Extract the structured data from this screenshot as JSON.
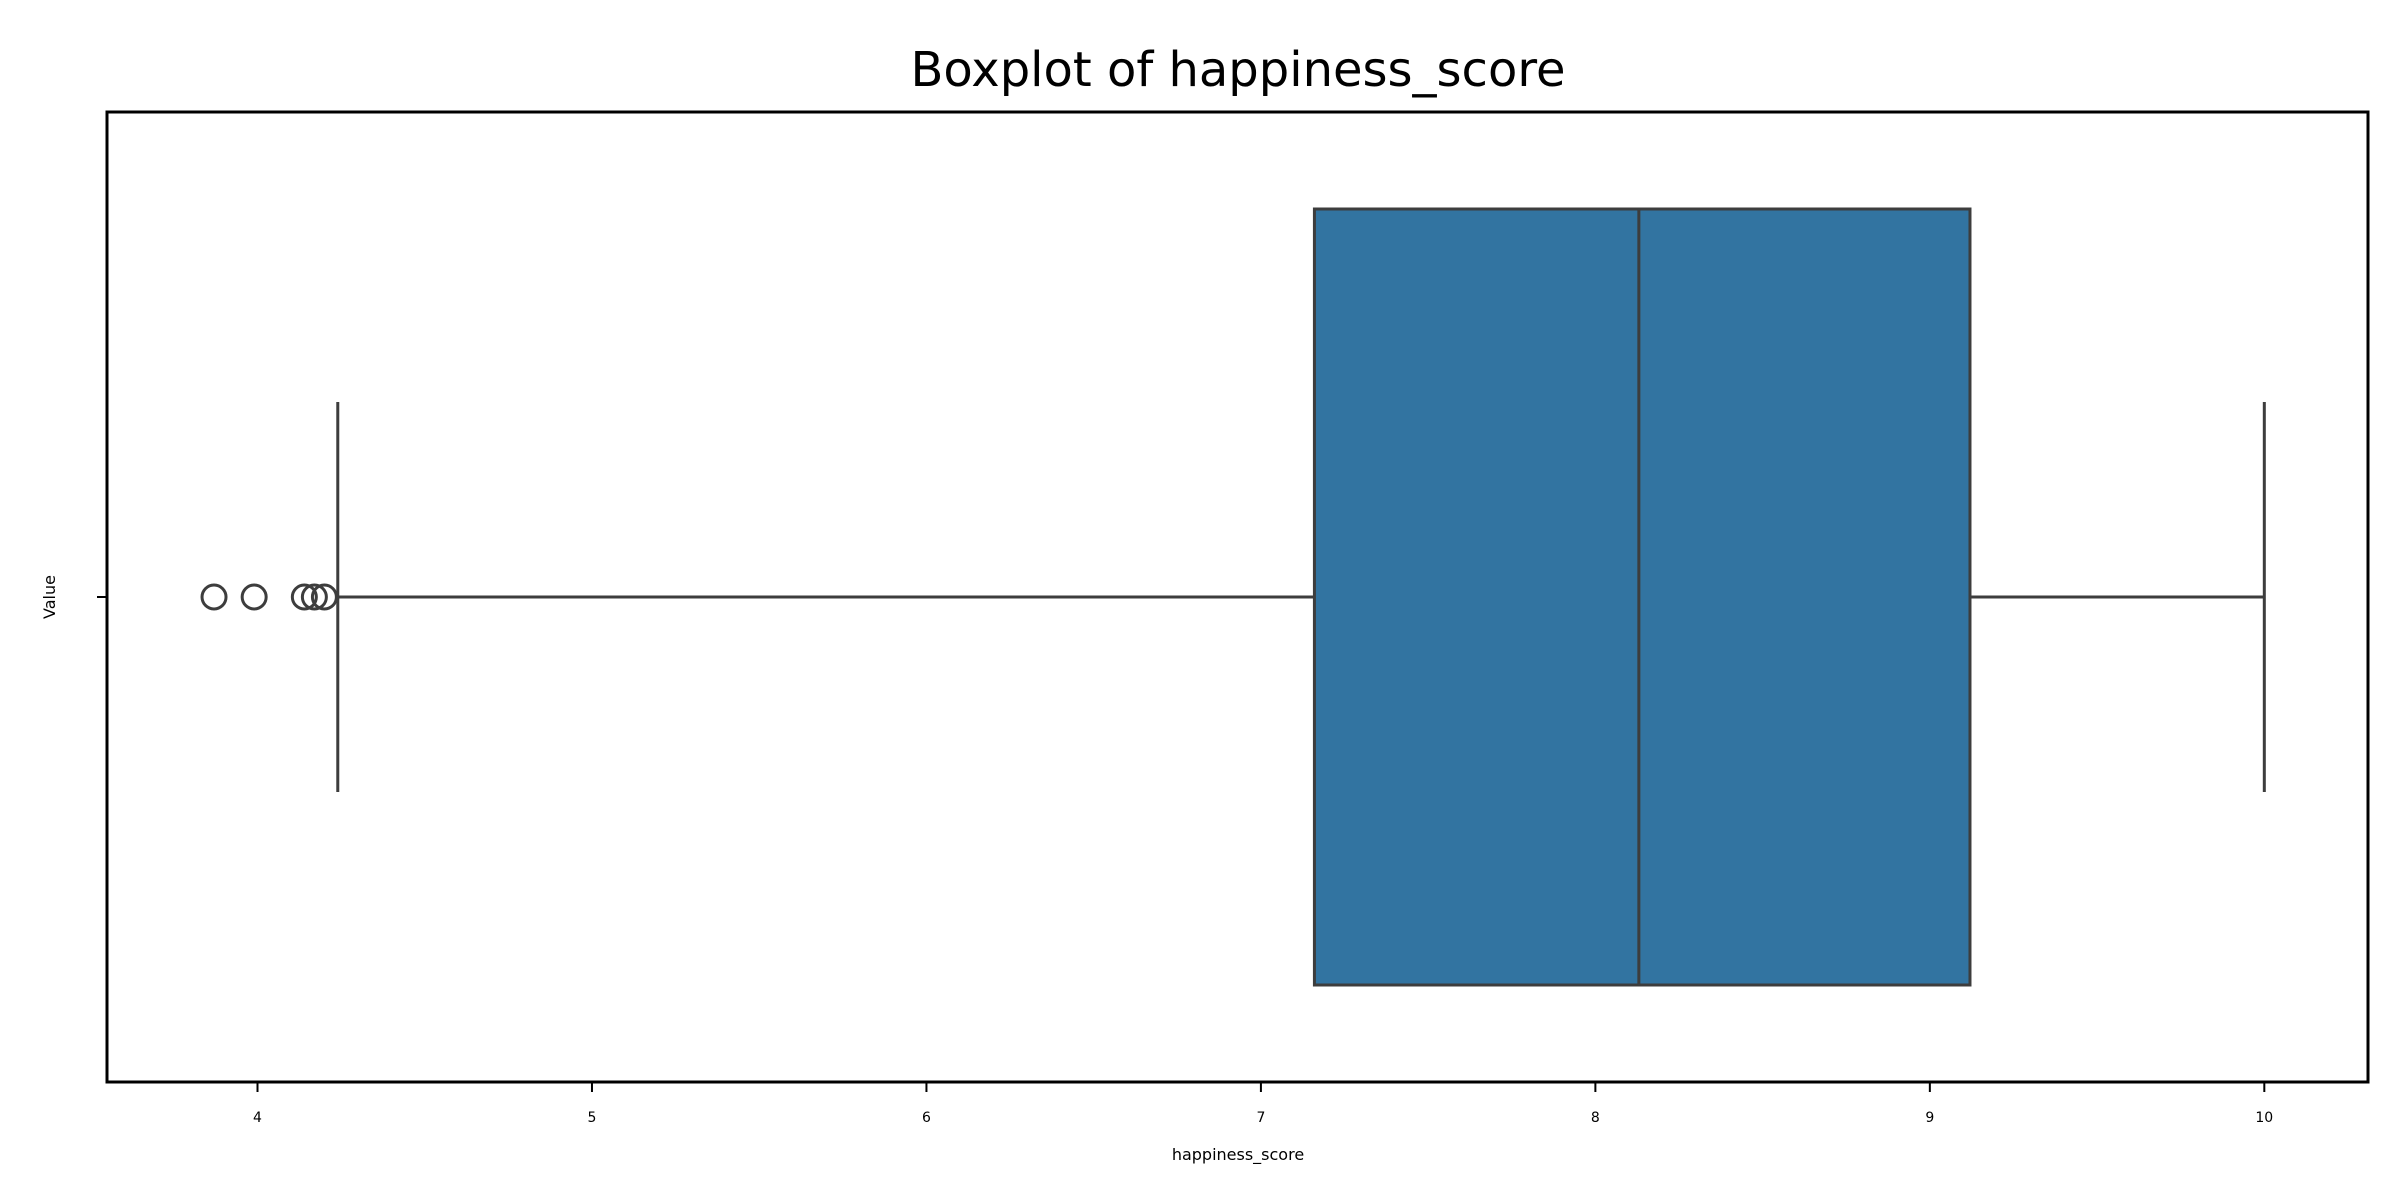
{
  "chart_data": {
    "type": "boxplot",
    "orientation": "horizontal",
    "title": "Boxplot of happiness_score",
    "xlabel": "happiness_score",
    "ylabel": "Value",
    "xlim": [
      3.55,
      10.31
    ],
    "x_ticks": [
      4,
      5,
      6,
      7,
      8,
      9,
      10
    ],
    "y_ticks": [
      ""
    ],
    "series": [
      {
        "whisker_low": 4.24,
        "q1": 7.16,
        "median": 8.13,
        "q3": 9.12,
        "whisker_high": 10.0,
        "outliers": [
          3.87,
          3.99,
          4.14,
          4.17,
          4.2
        ]
      }
    ],
    "box_color": "#3274a1",
    "line_color": "#3d3d3d",
    "grid": false,
    "legend": "none"
  }
}
